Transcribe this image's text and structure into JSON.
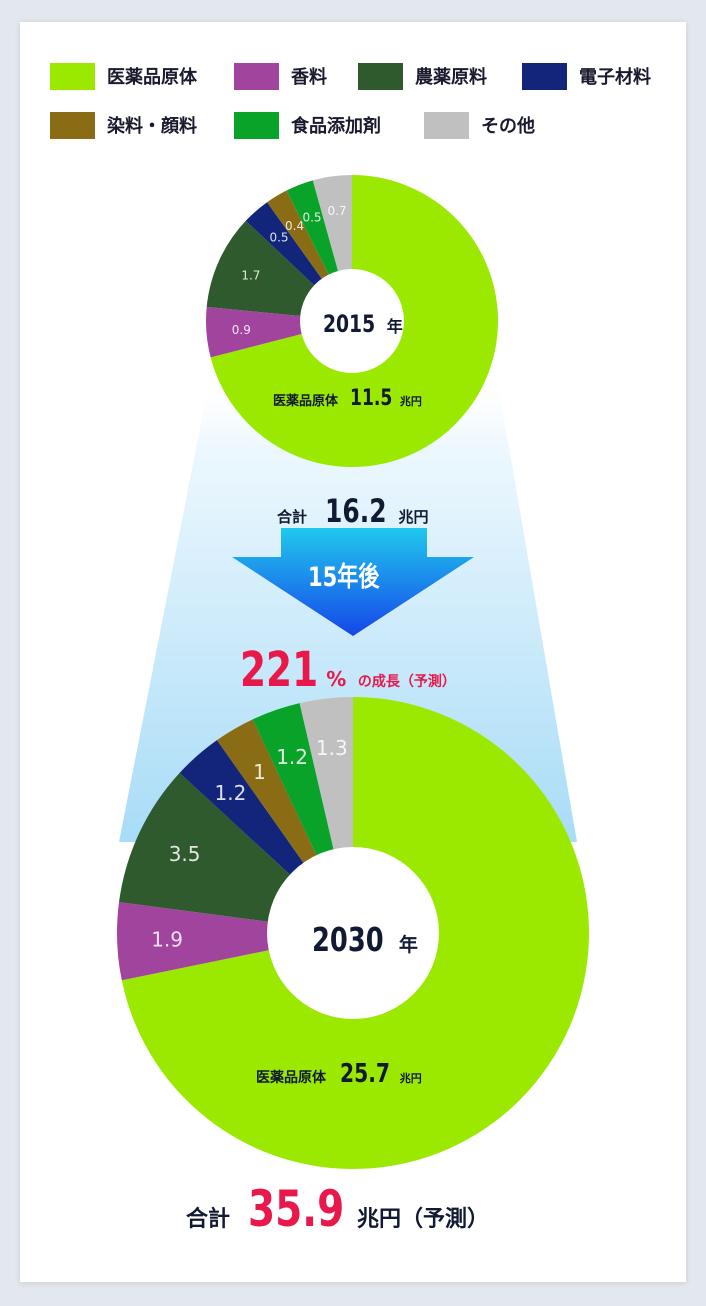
{
  "legend": [
    {
      "label": "医薬品原体",
      "color": "#9be800"
    },
    {
      "label": "香料",
      "color": "#a1449e"
    },
    {
      "label": "農薬原料",
      "color": "#2e5a2e"
    },
    {
      "label": "電子材料",
      "color": "#13257a"
    },
    {
      "label": "染料・顔料",
      "color": "#8a6c14"
    },
    {
      "label": "食品添加剤",
      "color": "#0aa32a"
    },
    {
      "label": "その他",
      "color": "#c0c0c0"
    }
  ],
  "chart_data": [
    {
      "type": "pie",
      "center_label": {
        "year": "2015",
        "suffix": "年"
      },
      "categories": [
        "医薬品原体",
        "香料",
        "農薬原料",
        "電子材料",
        "染料・顔料",
        "食品添加剤",
        "その他"
      ],
      "values": [
        11.5,
        0.9,
        1.7,
        0.5,
        0.4,
        0.5,
        0.7
      ],
      "value_labels": [
        "11.5",
        "0.9",
        "1.7",
        "0.5",
        "0.4",
        "0.5",
        "0.7"
      ],
      "main_label": {
        "name": "医薬品原体",
        "value": "11.5",
        "unit": "兆円"
      }
    },
    {
      "type": "pie",
      "center_label": {
        "year": "2030",
        "suffix": "年"
      },
      "categories": [
        "医薬品原体",
        "香料",
        "農薬原料",
        "電子材料",
        "染料・顔料",
        "食品添加剤",
        "その他"
      ],
      "values": [
        25.7,
        1.9,
        3.5,
        1.2,
        1.0,
        1.2,
        1.3
      ],
      "value_labels": [
        "25.7",
        "1.9",
        "3.5",
        "1.2",
        "1",
        "1.2",
        "1.3"
      ],
      "main_label": {
        "name": "医薬品原体",
        "value": "25.7",
        "unit": "兆円"
      }
    }
  ],
  "total_2015": {
    "prefix": "合計",
    "value": "16.2",
    "unit": "兆円"
  },
  "arrow": {
    "label": "15年後"
  },
  "growth": {
    "value": "221",
    "percent": "%",
    "text": "の成長（予測）"
  },
  "total_2030": {
    "prefix": "合計",
    "value": "35.9",
    "unit": "兆円（予測）"
  },
  "colors": {
    "accent_red": "#e8184a",
    "arrow_top": "#21c8ee",
    "arrow_bottom": "#1546e8",
    "beam": "#a8dcf7"
  }
}
